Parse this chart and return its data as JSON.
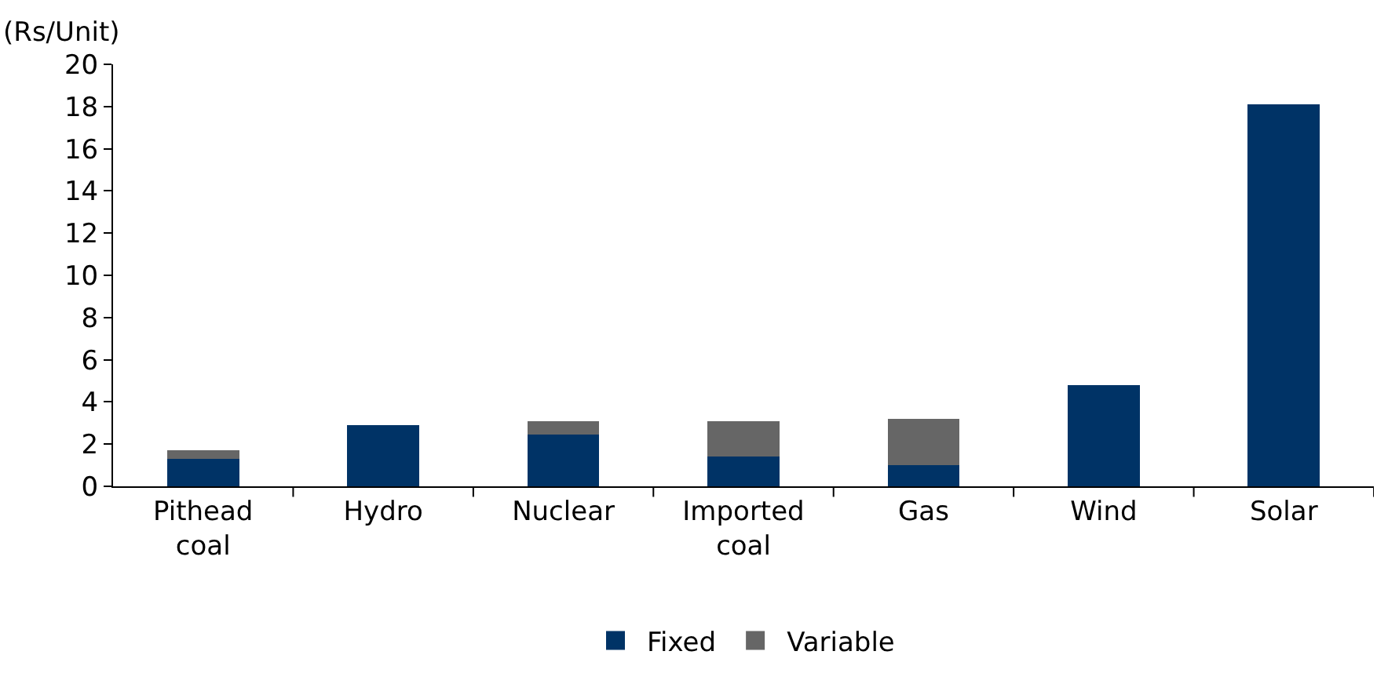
{
  "chart_data": {
    "type": "bar",
    "stacked": true,
    "ylabel": "(Rs/Unit)",
    "categories": [
      "Pithead\ncoal",
      "Hydro",
      "Nuclear",
      "Imported\ncoal",
      "Gas",
      "Wind",
      "Solar"
    ],
    "series": [
      {
        "name": "Fixed",
        "color": "#003366",
        "values": [
          1.3,
          2.9,
          2.45,
          1.4,
          1.0,
          4.8,
          18.1
        ]
      },
      {
        "name": "Variable",
        "color": "#666666",
        "values": [
          0.4,
          0,
          0.65,
          1.7,
          2.2,
          0,
          0
        ]
      }
    ],
    "ylim": [
      0,
      20
    ],
    "yticks": [
      0,
      2,
      4,
      6,
      8,
      10,
      12,
      14,
      16,
      18,
      20
    ],
    "grid": false,
    "legend": "bottom"
  }
}
